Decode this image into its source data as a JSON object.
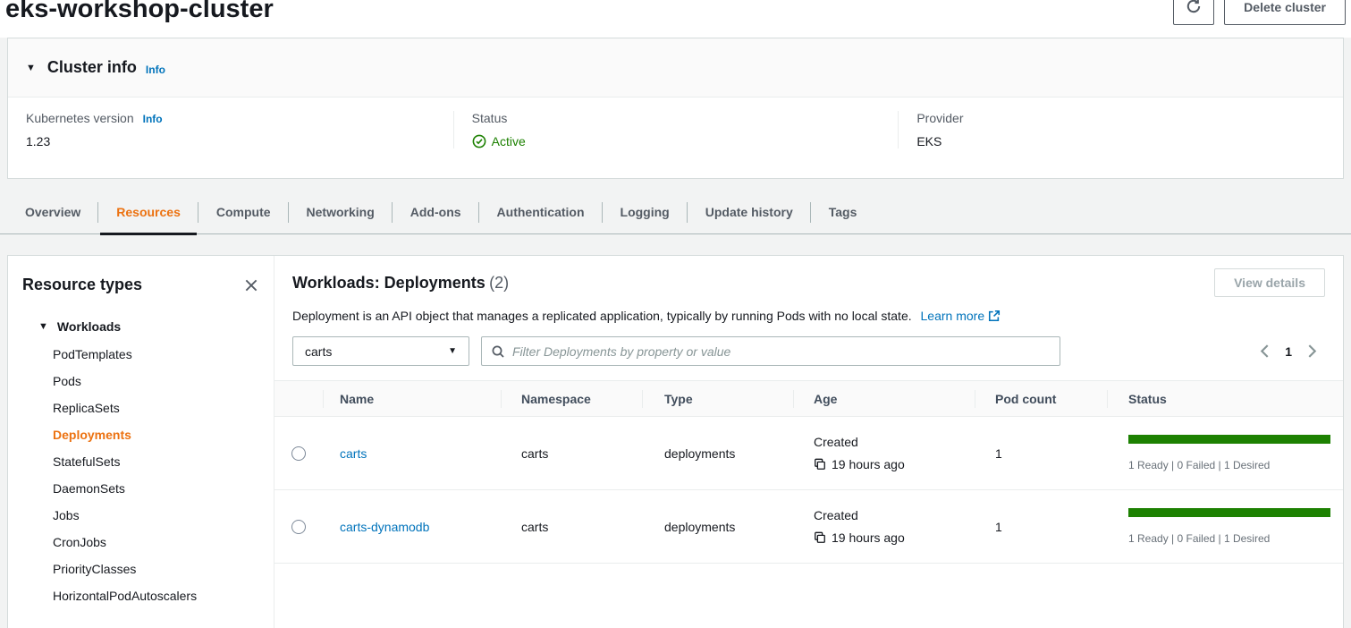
{
  "page": {
    "title": "eks-workshop-cluster",
    "delete_button": "Delete cluster"
  },
  "cluster_info": {
    "title": "Cluster info",
    "info_label": "Info",
    "fields": [
      {
        "label": "Kubernetes version",
        "info": "Info",
        "value": "1.23"
      },
      {
        "label": "Status",
        "value": "Active"
      },
      {
        "label": "Provider",
        "value": "EKS"
      }
    ]
  },
  "tabs": [
    "Overview",
    "Resources",
    "Compute",
    "Networking",
    "Add-ons",
    "Authentication",
    "Logging",
    "Update history",
    "Tags"
  ],
  "active_tab": "Resources",
  "sidebar": {
    "title": "Resource types",
    "group_label": "Workloads",
    "items": [
      "PodTemplates",
      "Pods",
      "ReplicaSets",
      "Deployments",
      "StatefulSets",
      "DaemonSets",
      "Jobs",
      "CronJobs",
      "PriorityClasses",
      "HorizontalPodAutoscalers"
    ],
    "active_item": "Deployments"
  },
  "main": {
    "title": "Workloads: Deployments",
    "count": "(2)",
    "description": "Deployment is an API object that manages a replicated application, typically by running Pods with no local state.",
    "learn_more_label": "Learn more",
    "view_details_label": "View details",
    "filter": {
      "dropdown_value": "carts",
      "search_placeholder": "Filter Deployments by property or value"
    },
    "pagination": {
      "current_page": "1"
    },
    "table": {
      "headers": [
        "Name",
        "Namespace",
        "Type",
        "Age",
        "Pod count",
        "Status"
      ],
      "rows": [
        {
          "name": "carts",
          "namespace": "carts",
          "type": "deployments",
          "age_label": "Created",
          "age_value": "19 hours ago",
          "pod_count": "1",
          "status_text": "1 Ready | 0 Failed | 1 Desired"
        },
        {
          "name": "carts-dynamodb",
          "namespace": "carts",
          "type": "deployments",
          "age_label": "Created",
          "age_value": "19 hours ago",
          "pod_count": "1",
          "status_text": "1 Ready | 0 Failed | 1 Desired"
        }
      ]
    }
  },
  "colors": {
    "accent_orange": "#ec7211",
    "link_blue": "#0073bb",
    "success_green": "#1d8102",
    "status_bar_green": "#1d8102"
  }
}
